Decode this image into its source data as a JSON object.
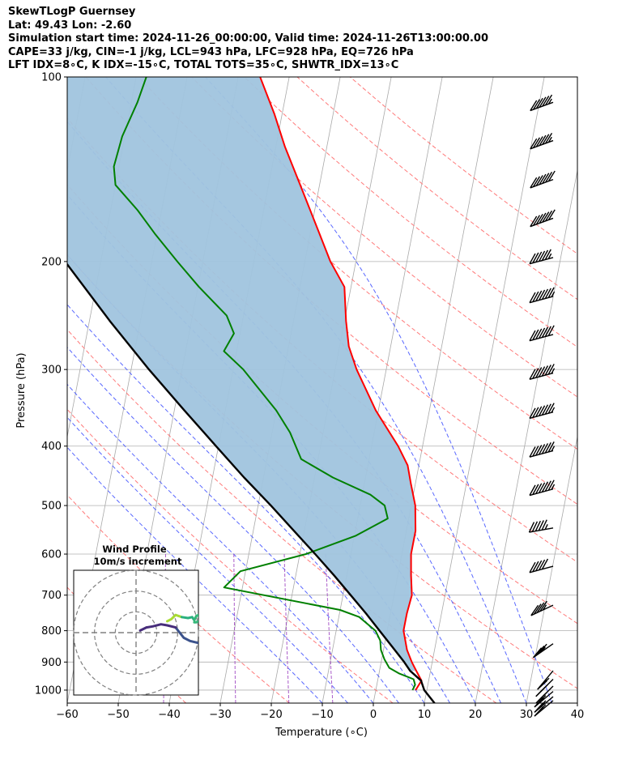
{
  "header": {
    "lines": [
      "SkewTLogP Guernsey",
      "Lat: 49.43   Lon: -2.60",
      "Simulation start time: 2024-11-26_00:00:00, Valid time: 2024-11-26T13:00:00.00",
      "CAPE=33 j/kg, CIN=-1 j/kg, LCL=943 hPa, LFC=928 hPa, EQ=726 hPa",
      "LFT IDX=8∘C, K IDX=-15∘C, TOTAL TOTS=35∘C, SHWTR_IDX=13∘C"
    ]
  },
  "colors": {
    "temperature": "#ff0000",
    "dewpoint": "#008000",
    "parcel": "#000000",
    "cape_fill": "#a0c4de",
    "dry_adiabat": "#ff6b6b",
    "moist_adiabat": "#3b4cff",
    "mixing_ratio": "#9b3fbf",
    "isotherm": "#a9a9a9"
  },
  "chart_data": {
    "type": "line",
    "title": "SkewTLogP Guernsey",
    "xlabel": "Temperature (∘C)",
    "ylabel": "Pressure (hPa)",
    "xlim": [
      -60,
      40
    ],
    "ylim": [
      1050,
      100
    ],
    "x_ticks": [
      "−60",
      "−50",
      "−40",
      "−30",
      "−20",
      "−10",
      "0",
      "10",
      "20",
      "30",
      "40"
    ],
    "x_tick_values": [
      -60,
      -50,
      -40,
      -30,
      -20,
      -10,
      0,
      10,
      20,
      30,
      40
    ],
    "y_ticks": [
      "100",
      "200",
      "300",
      "400",
      "500",
      "600",
      "700",
      "800",
      "900",
      "1000"
    ],
    "y_tick_values": [
      100,
      200,
      300,
      400,
      500,
      600,
      700,
      800,
      900,
      1000
    ],
    "series": [
      {
        "name": "Temperature",
        "points": [
          [
            1000,
            7.8
          ],
          [
            965,
            8.6
          ],
          [
            930,
            7.2
          ],
          [
            900,
            6.0
          ],
          [
            860,
            4.6
          ],
          [
            800,
            3.2
          ],
          [
            750,
            3.2
          ],
          [
            700,
            3.5
          ],
          [
            650,
            2.6
          ],
          [
            600,
            1.8
          ],
          [
            550,
            1.8
          ],
          [
            500,
            0.8
          ],
          [
            460,
            -0.9
          ],
          [
            430,
            -2.2
          ],
          [
            400,
            -4.8
          ],
          [
            350,
            -10.5
          ],
          [
            300,
            -15.8
          ],
          [
            275,
            -18.2
          ],
          [
            250,
            -19.7
          ],
          [
            220,
            -21.3
          ],
          [
            200,
            -25.0
          ],
          [
            180,
            -28.2
          ],
          [
            150,
            -33.8
          ],
          [
            130,
            -38.2
          ],
          [
            115,
            -41.5
          ],
          [
            100,
            -45.7
          ]
        ]
      },
      {
        "name": "Dewpoint",
        "points": [
          [
            1000,
            7.2
          ],
          [
            980,
            7.5
          ],
          [
            960,
            7.0
          ],
          [
            940,
            4.0
          ],
          [
            920,
            1.8
          ],
          [
            890,
            0.5
          ],
          [
            860,
            -0.5
          ],
          [
            830,
            -1.0
          ],
          [
            800,
            -2.3
          ],
          [
            760,
            -6.0
          ],
          [
            740,
            -10.0
          ],
          [
            680,
            -33.6
          ],
          [
            640,
            -31.0
          ],
          [
            600,
            -18.8
          ],
          [
            560,
            -9.7
          ],
          [
            525,
            -4.1
          ],
          [
            500,
            -5.2
          ],
          [
            480,
            -8.4
          ],
          [
            450,
            -16.4
          ],
          [
            420,
            -23.3
          ],
          [
            380,
            -26.5
          ],
          [
            350,
            -30.0
          ],
          [
            300,
            -38.0
          ],
          [
            280,
            -42.5
          ],
          [
            262,
            -41.2
          ],
          [
            245,
            -43.3
          ],
          [
            220,
            -49.8
          ],
          [
            200,
            -55.0
          ],
          [
            180,
            -60.5
          ],
          [
            165,
            -64.7
          ],
          [
            150,
            -70.0
          ],
          [
            140,
            -71.0
          ],
          [
            125,
            -70.5
          ],
          [
            110,
            -68.8
          ],
          [
            100,
            -68.0
          ]
        ]
      },
      {
        "name": "Parcel",
        "points": [
          [
            1050,
            12.0
          ],
          [
            1000,
            9.5
          ],
          [
            965,
            8.5
          ],
          [
            930,
            6.0
          ],
          [
            900,
            4.5
          ],
          [
            850,
            1.6
          ],
          [
            800,
            -1.5
          ],
          [
            750,
            -4.8
          ],
          [
            700,
            -8.5
          ],
          [
            650,
            -12.5
          ],
          [
            600,
            -17.0
          ],
          [
            550,
            -22.0
          ],
          [
            500,
            -27.5
          ],
          [
            450,
            -33.8
          ],
          [
            400,
            -40.5
          ],
          [
            350,
            -48.0
          ],
          [
            300,
            -56.5
          ],
          [
            250,
            -66.0
          ],
          [
            200,
            -77.0
          ],
          [
            150,
            -91.0
          ],
          [
            100,
            -110.0
          ]
        ]
      }
    ],
    "cape_region": "Shaded between parcel and temperature profiles (CAPE)",
    "wind_barbs": [
      {
        "p": 110,
        "speed_kt": 65,
        "dir_deg": 250
      },
      {
        "p": 127,
        "speed_kt": 65,
        "dir_deg": 250
      },
      {
        "p": 147,
        "speed_kt": 70,
        "dir_deg": 250
      },
      {
        "p": 170,
        "speed_kt": 70,
        "dir_deg": 250
      },
      {
        "p": 197,
        "speed_kt": 65,
        "dir_deg": 255
      },
      {
        "p": 228,
        "speed_kt": 75,
        "dir_deg": 255
      },
      {
        "p": 263,
        "speed_kt": 70,
        "dir_deg": 255
      },
      {
        "p": 304,
        "speed_kt": 75,
        "dir_deg": 255
      },
      {
        "p": 352,
        "speed_kt": 75,
        "dir_deg": 255
      },
      {
        "p": 407,
        "speed_kt": 75,
        "dir_deg": 255
      },
      {
        "p": 470,
        "speed_kt": 75,
        "dir_deg": 255
      },
      {
        "p": 544,
        "speed_kt": 55,
        "dir_deg": 260
      },
      {
        "p": 628,
        "speed_kt": 50,
        "dir_deg": 255
      },
      {
        "p": 727,
        "speed_kt": 45,
        "dir_deg": 245
      },
      {
        "p": 840,
        "speed_kt": 35,
        "dir_deg": 235
      },
      {
        "p": 930,
        "speed_kt": 25,
        "dir_deg": 220
      },
      {
        "p": 960,
        "speed_kt": 25,
        "dir_deg": 225
      },
      {
        "p": 985,
        "speed_kt": 25,
        "dir_deg": 225
      },
      {
        "p": 1005,
        "speed_kt": 25,
        "dir_deg": 230
      },
      {
        "p": 1025,
        "speed_kt": 25,
        "dir_deg": 230
      },
      {
        "p": 1040,
        "speed_kt": 20,
        "dir_deg": 230
      }
    ]
  },
  "hodograph": {
    "title": "Wind Profile",
    "subtitle": "10m/s increment",
    "ring_increment_ms": 10,
    "ring_count": 3,
    "u_range": [
      -30,
      30
    ],
    "v_range": [
      -30,
      30
    ],
    "segments": [
      {
        "color": "#3b528b",
        "points": [
          [
            30,
            -5
          ],
          [
            26,
            -4
          ],
          [
            23,
            -2.5
          ],
          [
            21,
            0
          ],
          [
            19,
            2.5
          ]
        ]
      },
      {
        "color": "#472d7b",
        "points": [
          [
            19,
            2.5
          ],
          [
            15,
            3.5
          ],
          [
            12,
            4
          ],
          [
            8,
            3
          ],
          [
            5,
            2.5
          ],
          [
            3,
            1.5
          ],
          [
            5,
            2.5
          ],
          [
            2,
            1
          ]
        ]
      },
      {
        "color": "#a8db34",
        "points": [
          [
            15,
            5.5
          ],
          [
            17,
            6.5
          ],
          [
            19,
            8.5
          ],
          [
            22,
            7.5
          ]
        ]
      },
      {
        "color": "#2ab07f",
        "points": [
          [
            22,
            7.5
          ],
          [
            25,
            7
          ],
          [
            27,
            7.5
          ],
          [
            28,
            6
          ]
        ]
      },
      {
        "color": "#35b779",
        "points": [
          [
            28,
            6
          ],
          [
            29,
            8
          ],
          [
            30,
            8.5
          ],
          [
            31,
            6
          ],
          [
            29,
            5
          ],
          [
            28,
            5
          ]
        ]
      }
    ]
  }
}
